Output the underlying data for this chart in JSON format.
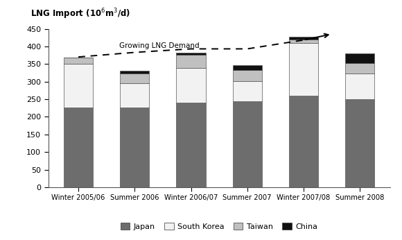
{
  "categories": [
    "Winter 2005/06",
    "Summer 2006",
    "Winter 2006/07",
    "Summer 2007",
    "Winter 2007/08",
    "Summer 2008"
  ],
  "japan": [
    227,
    227,
    240,
    245,
    260,
    250
  ],
  "south_korea": [
    123,
    68,
    98,
    57,
    150,
    72
  ],
  "taiwan": [
    18,
    28,
    38,
    30,
    10,
    30
  ],
  "china": [
    0,
    7,
    7,
    15,
    8,
    28
  ],
  "dashed_line_y_x": [
    0,
    1,
    2,
    3,
    4,
    4.5
  ],
  "dashed_line_y": [
    370,
    383,
    393,
    393,
    418,
    435
  ],
  "japan_color": "#6d6d6d",
  "south_korea_color": "#f2f2f2",
  "taiwan_color": "#c0c0c0",
  "china_color": "#111111",
  "bar_edge_color": "#555555",
  "ylabel": "LNG Import (10$^6$m$^3$/d)",
  "ylim": [
    0,
    450
  ],
  "yticks": [
    0,
    50,
    100,
    150,
    200,
    250,
    300,
    350,
    400,
    450
  ],
  "annotation": "Growing LNG Demand",
  "background_color": "#ffffff"
}
